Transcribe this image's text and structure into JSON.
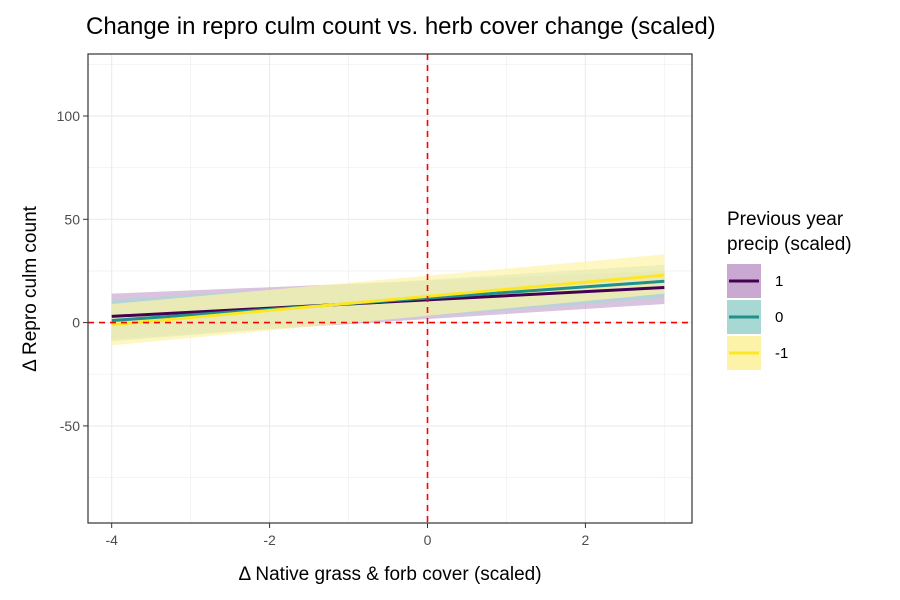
{
  "chart_data": {
    "type": "line",
    "title": "Change in repro culm count vs. herb cover change (scaled)",
    "xlabel": "Δ Native grass & forb cover (scaled)",
    "ylabel": "Δ Repro culm count",
    "xlim": [
      -4.3,
      3.35
    ],
    "ylim": [
      -97,
      130
    ],
    "x_ticks": [
      -4,
      -2,
      0,
      2
    ],
    "y_ticks": [
      -50,
      0,
      50,
      100
    ],
    "grid": true,
    "reference_lines": {
      "x": 0,
      "y": 0,
      "color": "#ff0000",
      "style": "dashed"
    },
    "legend": {
      "title_line1": "Previous year",
      "title_line2": "precip (scaled)",
      "position": "right"
    },
    "series": [
      {
        "name": "1",
        "color": "#440154",
        "fill": "#c9a9d1",
        "x": [
          -4,
          3
        ],
        "y": [
          3,
          17
        ],
        "lower": [
          -8,
          9
        ],
        "upper": [
          14,
          25
        ]
      },
      {
        "name": "0",
        "color": "#21908c",
        "fill": "#a8d8d4",
        "x": [
          -4,
          3
        ],
        "y": [
          1,
          20
        ],
        "lower": [
          -9,
          12
        ],
        "upper": [
          11,
          28
        ]
      },
      {
        "name": "-1",
        "color": "#fde725",
        "fill": "#fdf3a8",
        "x": [
          -4,
          3
        ],
        "y": [
          -1,
          23
        ],
        "lower": [
          -11,
          14
        ],
        "upper": [
          9,
          33
        ]
      }
    ]
  }
}
